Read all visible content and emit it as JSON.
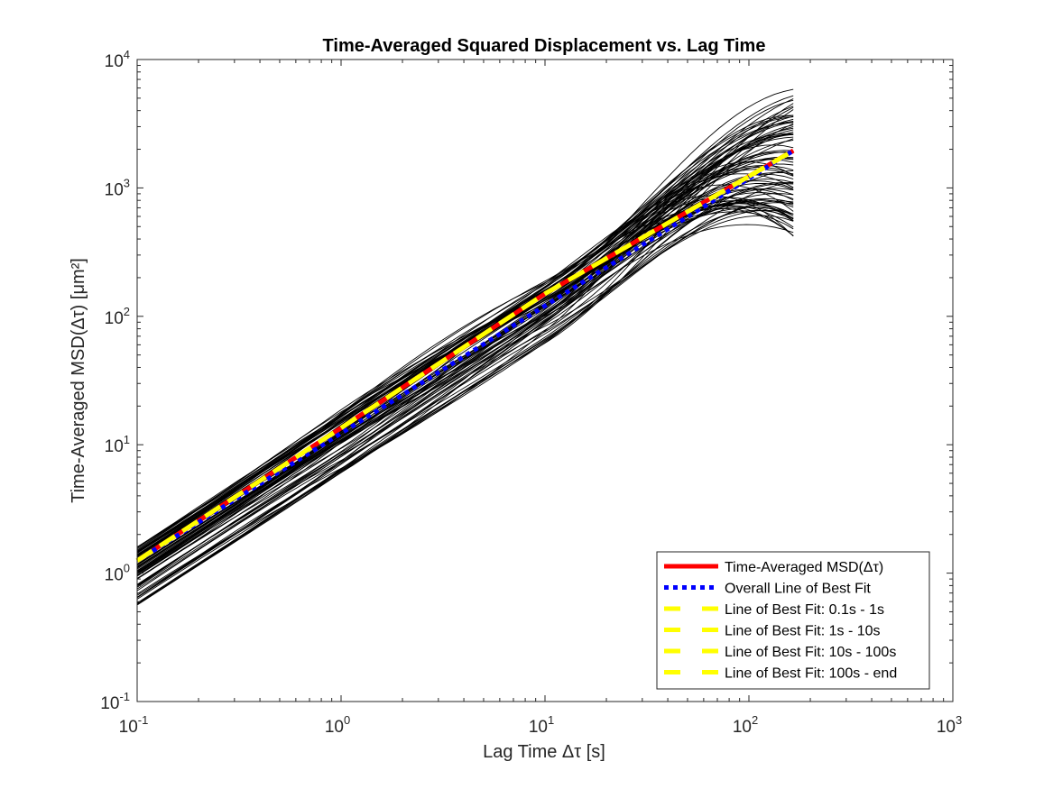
{
  "chart_data": {
    "type": "line",
    "title": "Time-Averaged Squared Displacement vs. Lag Time",
    "xlabel": "Lag Time Δτ [s]",
    "ylabel": "Time-Averaged MSD(Δτ) [μm²]",
    "xscale": "log",
    "yscale": "log",
    "xlim": [
      0.1,
      1000
    ],
    "ylim": [
      0.1,
      10000
    ],
    "x_ticks": [
      {
        "base": "10",
        "exp": "-1",
        "value": 0.1
      },
      {
        "base": "10",
        "exp": "0",
        "value": 1
      },
      {
        "base": "10",
        "exp": "1",
        "value": 10
      },
      {
        "base": "10",
        "exp": "2",
        "value": 100
      },
      {
        "base": "10",
        "exp": "3",
        "value": 1000
      }
    ],
    "y_ticks": [
      {
        "base": "10",
        "exp": "-1",
        "value": 0.1
      },
      {
        "base": "10",
        "exp": "0",
        "value": 1
      },
      {
        "base": "10",
        "exp": "1",
        "value": 10
      },
      {
        "base": "10",
        "exp": "2",
        "value": 100
      },
      {
        "base": "10",
        "exp": "3",
        "value": 1000
      },
      {
        "base": "10",
        "exp": "4",
        "value": 10000
      }
    ],
    "grid": false,
    "legend_position": "bottom-right",
    "trajectories": {
      "color": "#000000",
      "count": 80,
      "x_start": 0.1,
      "x_end": 165,
      "msd_at_0_1s_range": [
        0.4,
        1.6
      ],
      "msd_at_end_range": [
        420,
        5500
      ]
    },
    "series": [
      {
        "name": "Time-Averaged MSD(Δτ)",
        "color": "#ff0000",
        "style": "solid",
        "x": [
          0.1,
          1,
          10,
          100,
          165
        ],
        "y": [
          1.25,
          13.5,
          150,
          1230,
          1950
        ]
      },
      {
        "name": "Overall Line of Best Fit",
        "color": "#0000ff",
        "style": "dotted",
        "x": [
          0.1,
          165
        ],
        "y": [
          1.25,
          1950
        ]
      },
      {
        "name": "Line of Best Fit: 0.1s - 1s",
        "color": "#ffff00",
        "style": "dashed",
        "x": [
          0.1,
          1
        ],
        "y": [
          1.25,
          13.5
        ]
      },
      {
        "name": "Line of Best Fit: 1s - 10s",
        "color": "#ffff00",
        "style": "dashed",
        "x": [
          1,
          10
        ],
        "y": [
          13.5,
          150
        ]
      },
      {
        "name": "Line of Best Fit: 10s - 100s",
        "color": "#ffff00",
        "style": "dashed",
        "x": [
          10,
          100
        ],
        "y": [
          150,
          1230
        ]
      },
      {
        "name": "Line of Best Fit: 100s - end",
        "color": "#ffff00",
        "style": "dashed",
        "x": [
          100,
          165
        ],
        "y": [
          1230,
          1950
        ]
      }
    ],
    "legend_entries": [
      {
        "label": "Time-Averaged MSD(Δτ)",
        "color": "#ff0000",
        "style": "solid"
      },
      {
        "label": "Overall Line of Best Fit",
        "color": "#0000ff",
        "style": "dotted"
      },
      {
        "label": "Line of Best Fit: 0.1s - 1s",
        "color": "#ffff00",
        "style": "dashed"
      },
      {
        "label": "Line of Best Fit: 1s - 10s",
        "color": "#ffff00",
        "style": "dashed"
      },
      {
        "label": "Line of Best Fit: 10s - 100s",
        "color": "#ffff00",
        "style": "dashed"
      },
      {
        "label": "Line of Best Fit: 100s - end",
        "color": "#ffff00",
        "style": "dashed"
      }
    ]
  }
}
